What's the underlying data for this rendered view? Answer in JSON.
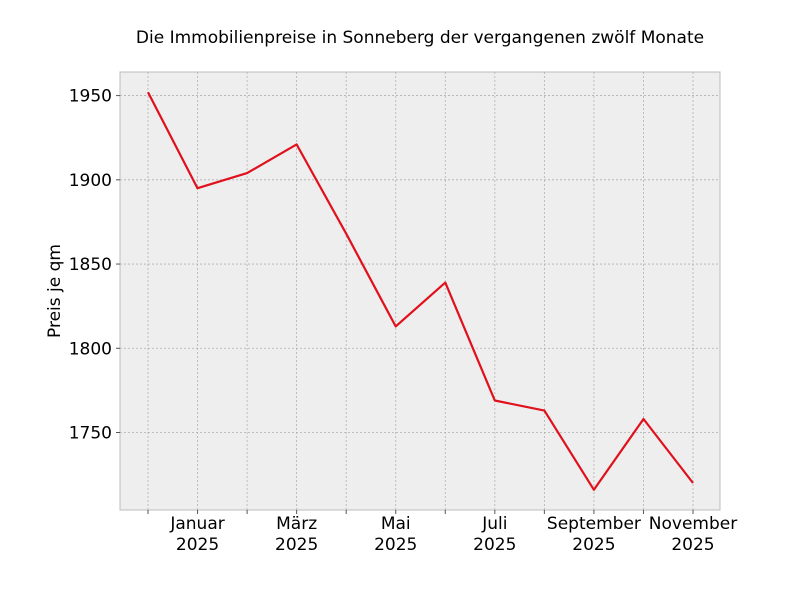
{
  "chart_data": {
    "type": "line",
    "title": "Die Immobilienpreise in Sonneberg der vergangenen zwölf Monate",
    "xlabel": "",
    "ylabel": "Preis je qm",
    "x": [
      "2024-12",
      "2025-01",
      "2025-02",
      "2025-03",
      "2025-04",
      "2025-05",
      "2025-06",
      "2025-07",
      "2025-08",
      "2025-09",
      "2025-10",
      "2025-11"
    ],
    "x_tick_labels": [
      {
        "x": "2025-01",
        "lines": [
          "Januar",
          "2025"
        ]
      },
      {
        "x": "2025-03",
        "lines": [
          "März",
          "2025"
        ]
      },
      {
        "x": "2025-05",
        "lines": [
          "Mai",
          "2025"
        ]
      },
      {
        "x": "2025-07",
        "lines": [
          "Juli",
          "2025"
        ]
      },
      {
        "x": "2025-09",
        "lines": [
          "September",
          "2025"
        ]
      },
      {
        "x": "2025-11",
        "lines": [
          "November",
          "2025"
        ]
      }
    ],
    "series": [
      {
        "values": [
          1952,
          1895,
          1904,
          1921,
          1868,
          1813,
          1839,
          1769,
          1763,
          1716,
          1758,
          1720
        ],
        "color": "#e0101c"
      }
    ],
    "yticks": [
      1750,
      1800,
      1850,
      1900,
      1950
    ],
    "ylim": [
      1704,
      1964
    ],
    "grid": true,
    "legend": "none"
  }
}
